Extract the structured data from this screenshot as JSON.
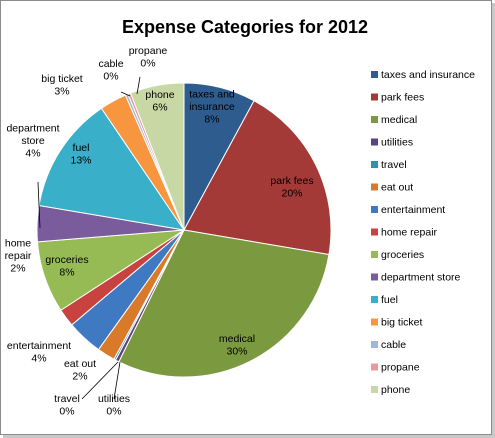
{
  "chart_data": {
    "type": "pie",
    "title": "Expense Categories for 2012",
    "legend_position": "right",
    "slices": [
      {
        "name": "taxes and insurance",
        "value": 8,
        "label": [
          "taxes and",
          "insurance",
          "8%"
        ],
        "color": "#2e5c8f"
      },
      {
        "name": "park fees",
        "value": 20,
        "label": [
          "park fees",
          "20%"
        ],
        "color": "#a33a37"
      },
      {
        "name": "medical",
        "value": 30,
        "label": [
          "medical",
          "30%"
        ],
        "color": "#7b9a3f"
      },
      {
        "name": "utilities",
        "value": 0.4,
        "label": [
          "utilities",
          "0%"
        ],
        "color": "#5b4380"
      },
      {
        "name": "travel",
        "value": 0.2,
        "label": [
          "travel",
          "0%"
        ],
        "color": "#2e94ab"
      },
      {
        "name": "eat out",
        "value": 2,
        "label": [
          "eat out",
          "2%"
        ],
        "color": "#d97a2a"
      },
      {
        "name": "entertainment",
        "value": 4,
        "label": [
          "entertainment",
          "4%"
        ],
        "color": "#3f79c2"
      },
      {
        "name": "home repair",
        "value": 2,
        "label": [
          "home",
          "repair",
          "2%"
        ],
        "color": "#c8433f"
      },
      {
        "name": "groceries",
        "value": 8,
        "label": [
          "groceries",
          "8%"
        ],
        "color": "#97bb54"
      },
      {
        "name": "department store",
        "value": 4,
        "label": [
          "department",
          "store",
          "4%"
        ],
        "color": "#7a5b9c"
      },
      {
        "name": "fuel",
        "value": 13,
        "label": [
          "fuel",
          "13%"
        ],
        "color": "#3aafc9"
      },
      {
        "name": "big ticket",
        "value": 3,
        "label": [
          "big ticket",
          "3%"
        ],
        "color": "#f7963e"
      },
      {
        "name": "cable",
        "value": 0.3,
        "label": [
          "cable",
          "0%"
        ],
        "color": "#9fb8dc"
      },
      {
        "name": "propane",
        "value": 0.3,
        "label": [
          "propane",
          "0%"
        ],
        "color": "#e59b97"
      },
      {
        "name": "phone",
        "value": 6,
        "label": [
          "phone",
          "6%"
        ],
        "color": "#c7d8a4"
      }
    ]
  }
}
